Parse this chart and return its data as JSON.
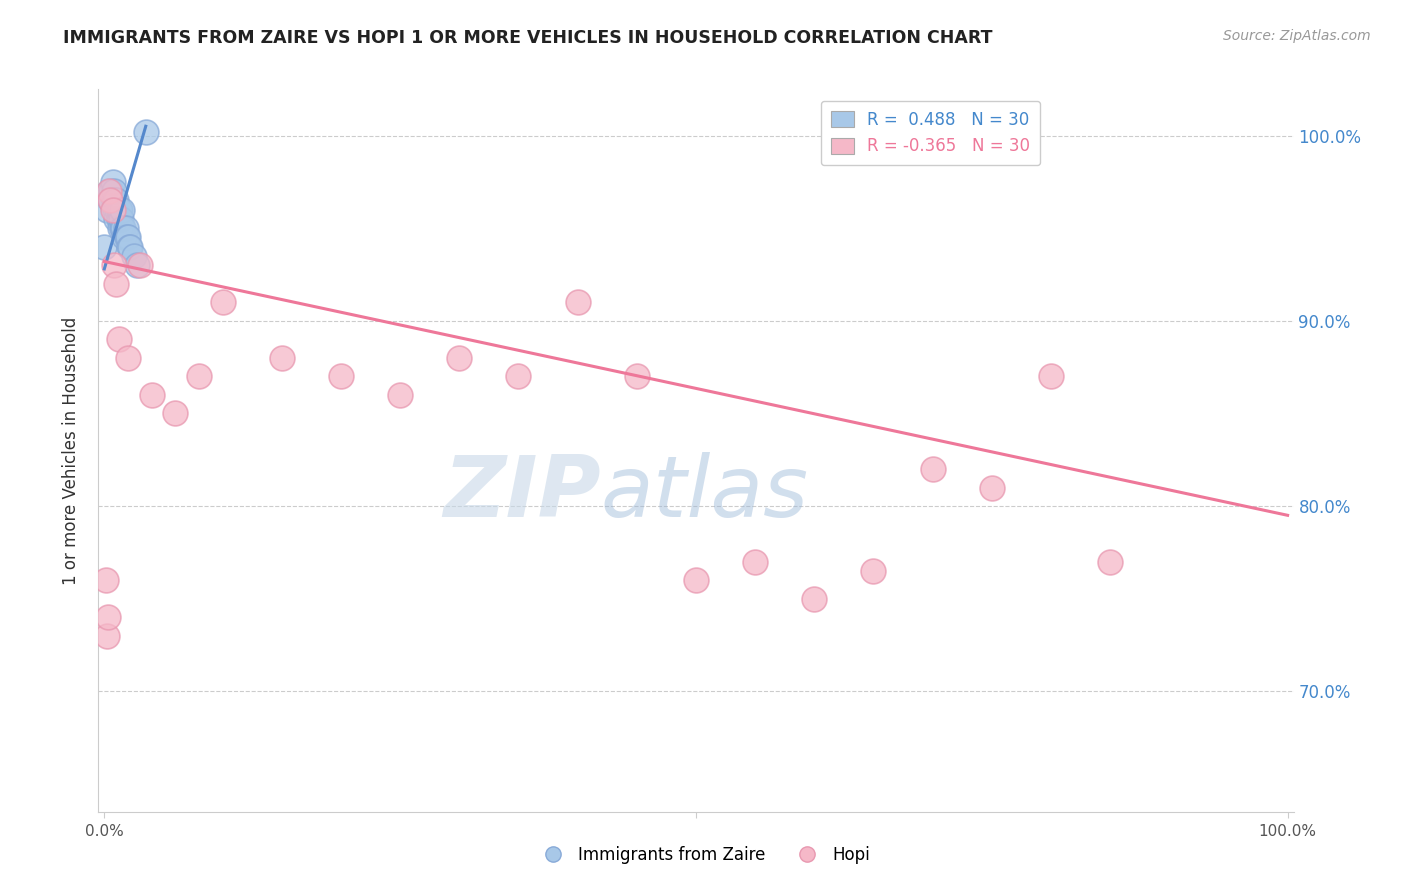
{
  "title": "IMMIGRANTS FROM ZAIRE VS HOPI 1 OR MORE VEHICLES IN HOUSEHOLD CORRELATION CHART",
  "source": "Source: ZipAtlas.com",
  "xlabel": "",
  "ylabel": "1 or more Vehicles in Household",
  "watermark_zip": "ZIP",
  "watermark_atlas": "atlas",
  "xlim": [
    -0.005,
    1.005
  ],
  "ylim": [
    0.635,
    1.025
  ],
  "y_ticks": [
    0.7,
    0.8,
    0.9,
    1.0
  ],
  "y_tick_labels": [
    "70.0%",
    "80.0%",
    "90.0%",
    "100.0%"
  ],
  "legend_blue_r": "R =  0.488",
  "legend_blue_n": "N = 30",
  "legend_pink_r": "R = -0.365",
  "legend_pink_n": "N = 30",
  "blue_scatter_color": "#a8c8e8",
  "pink_scatter_color": "#f5b8c8",
  "blue_line_color": "#5588cc",
  "pink_line_color": "#ee7799",
  "blue_x": [
    0.0,
    0.002,
    0.004,
    0.005,
    0.006,
    0.007,
    0.008,
    0.008,
    0.009,
    0.009,
    0.01,
    0.01,
    0.011,
    0.012,
    0.012,
    0.013,
    0.013,
    0.014,
    0.015,
    0.015,
    0.016,
    0.017,
    0.018,
    0.019,
    0.02,
    0.021,
    0.022,
    0.025,
    0.028,
    0.035
  ],
  "blue_y": [
    0.94,
    0.96,
    0.97,
    0.965,
    0.97,
    0.975,
    0.965,
    0.97,
    0.96,
    0.965,
    0.955,
    0.965,
    0.96,
    0.955,
    0.96,
    0.95,
    0.96,
    0.955,
    0.95,
    0.96,
    0.95,
    0.945,
    0.95,
    0.945,
    0.945,
    0.94,
    0.94,
    0.935,
    0.93,
    1.002
  ],
  "pink_x": [
    0.001,
    0.002,
    0.003,
    0.004,
    0.005,
    0.007,
    0.008,
    0.01,
    0.012,
    0.02,
    0.03,
    0.04,
    0.06,
    0.08,
    0.1,
    0.15,
    0.2,
    0.25,
    0.3,
    0.35,
    0.4,
    0.45,
    0.5,
    0.55,
    0.6,
    0.65,
    0.7,
    0.75,
    0.8,
    0.85
  ],
  "pink_y": [
    0.76,
    0.73,
    0.74,
    0.97,
    0.965,
    0.96,
    0.93,
    0.92,
    0.89,
    0.88,
    0.93,
    0.86,
    0.85,
    0.87,
    0.91,
    0.88,
    0.87,
    0.86,
    0.88,
    0.87,
    0.91,
    0.87,
    0.76,
    0.77,
    0.75,
    0.765,
    0.82,
    0.81,
    0.87,
    0.77
  ],
  "blue_trendline_x": [
    0.0,
    0.035
  ],
  "blue_trendline_y": [
    0.928,
    1.005
  ],
  "pink_trendline_x": [
    0.0,
    1.0
  ],
  "pink_trendline_y": [
    0.932,
    0.795
  ]
}
